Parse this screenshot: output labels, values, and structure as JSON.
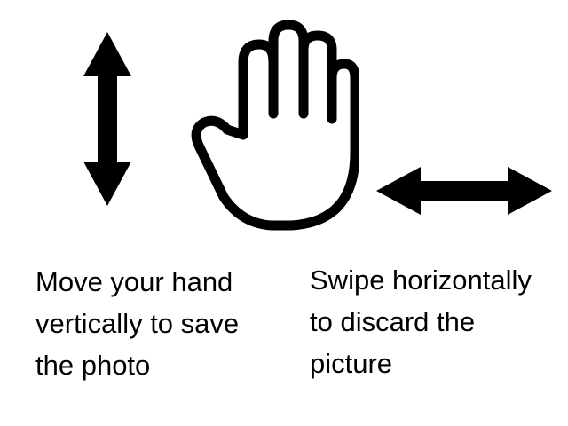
{
  "icons": {
    "vertical_arrow": "double-headed-vertical-arrow-icon",
    "hand": "open-hand-outline-icon",
    "horizontal_arrow": "double-headed-horizontal-arrow-icon"
  },
  "instructions": {
    "save": {
      "lines": [
        "Move your hand",
        "vertically to save",
        "the photo"
      ]
    },
    "discard": {
      "lines": [
        "Swipe horizontally",
        "to discard the",
        "picture"
      ]
    }
  },
  "colors": {
    "foreground": "#000000",
    "background": "#ffffff"
  }
}
